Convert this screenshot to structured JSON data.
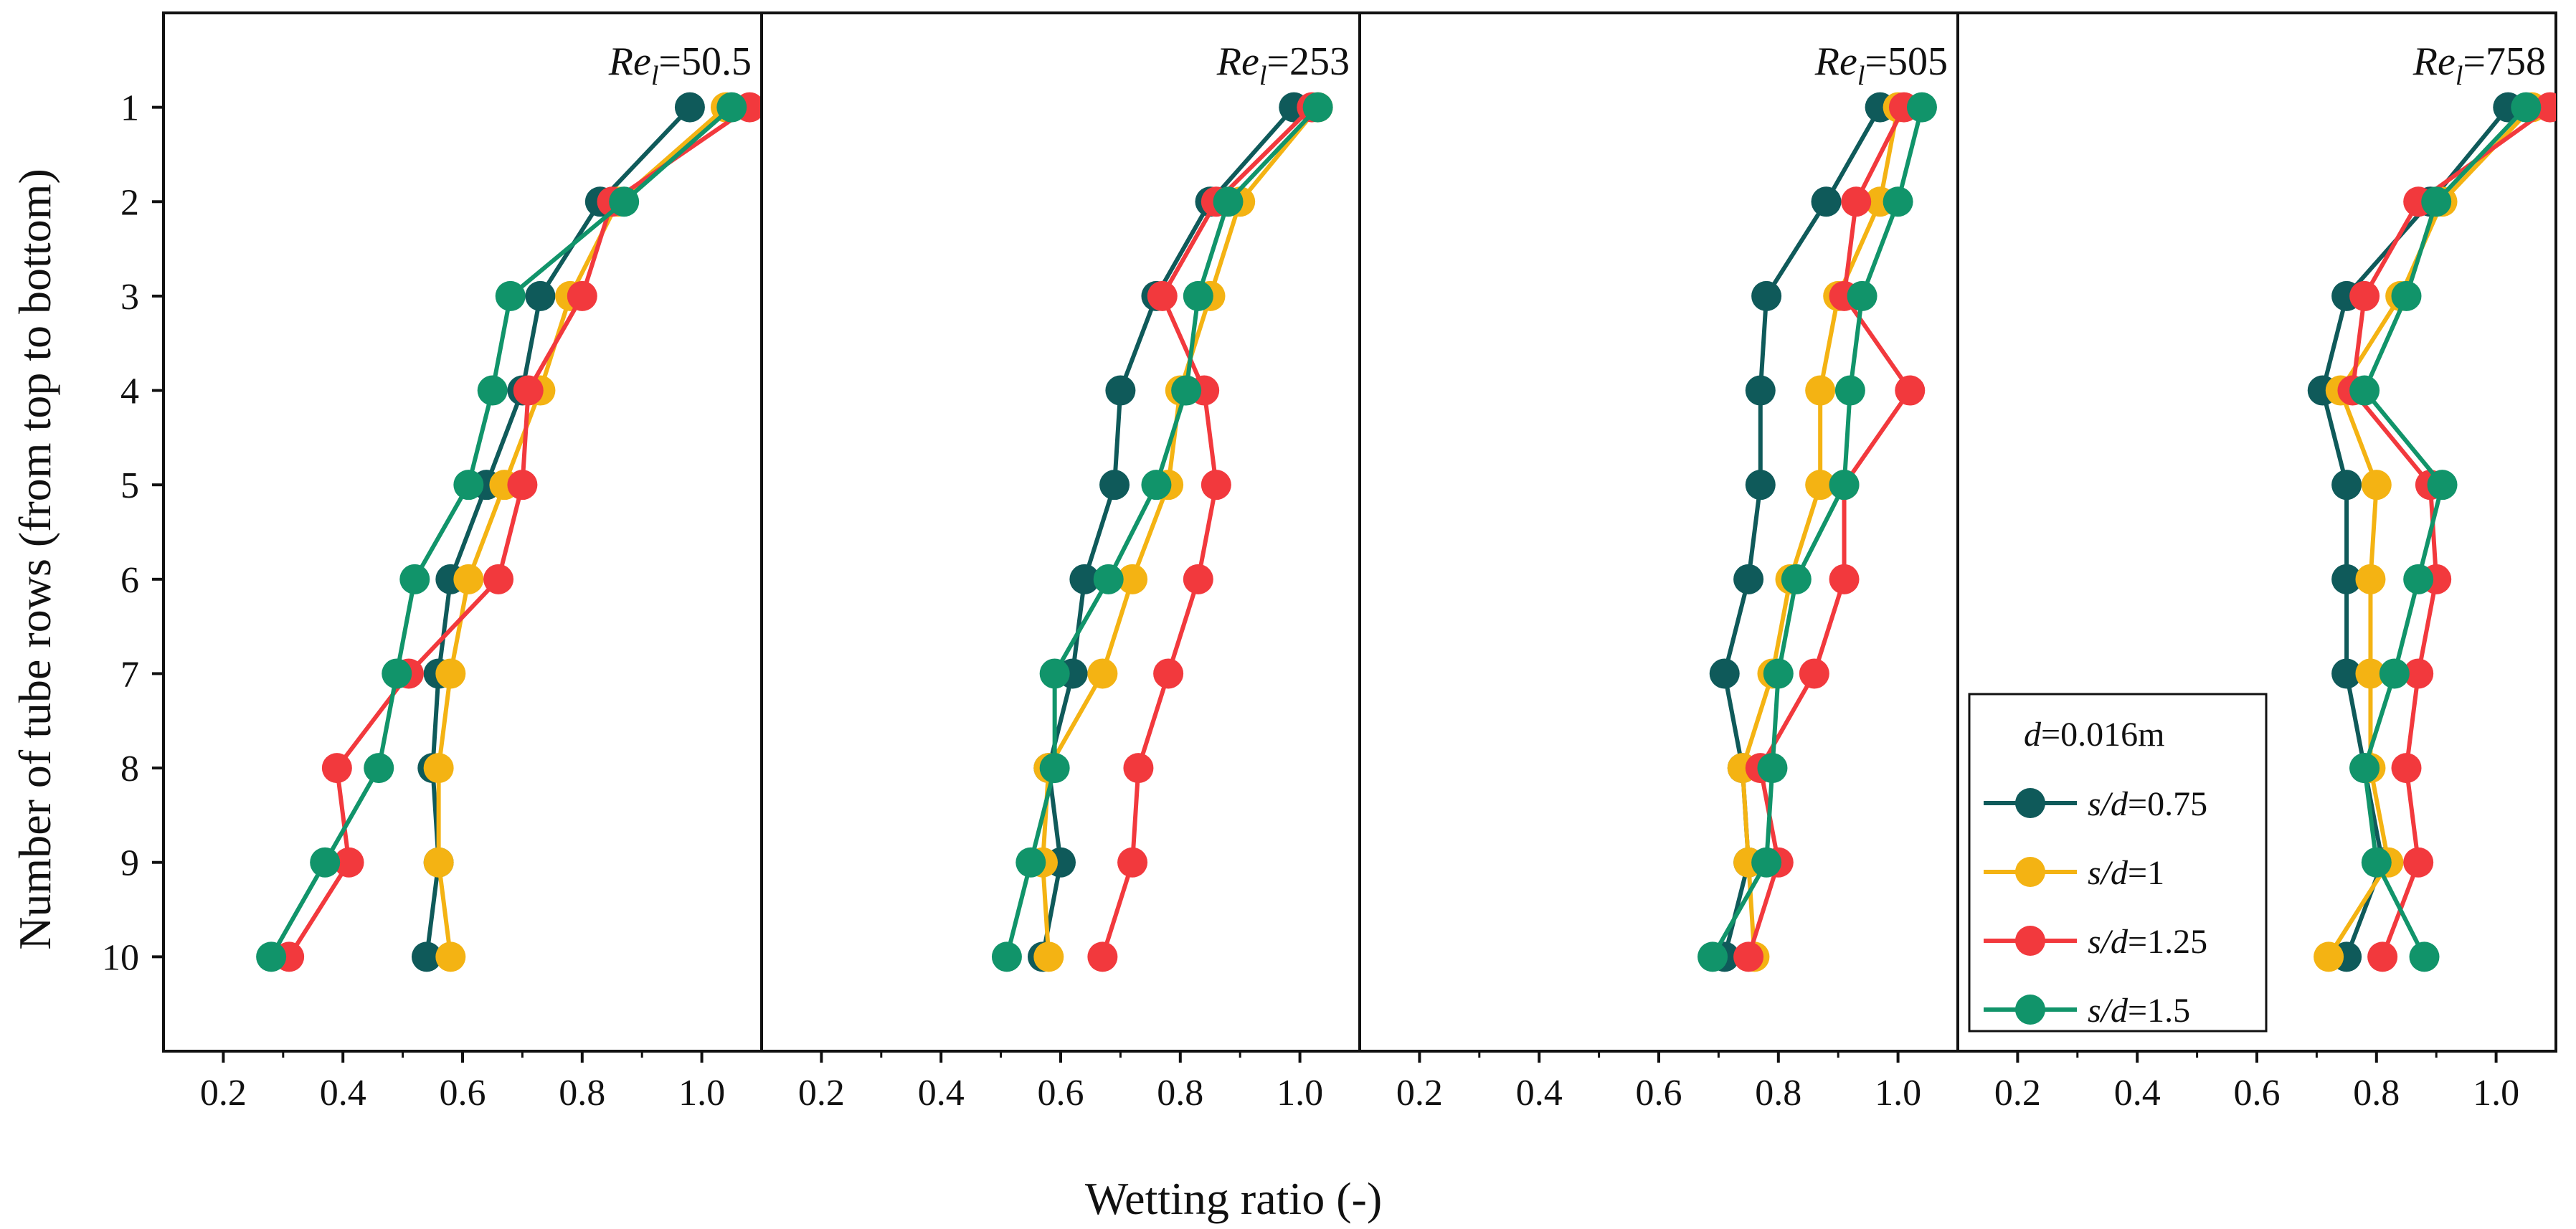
{
  "chart_data": {
    "type": "line",
    "xlabel": "Wetting ratio (-)",
    "ylabel": "Number of tube rows (from top to bottom)",
    "xlim": [
      0.1,
      1.1
    ],
    "ylim": [
      11,
      0
    ],
    "x_ticks": [
      "0.2",
      "0.4",
      "0.6",
      "0.8",
      "1.0"
    ],
    "y_ticks": [
      "1",
      "2",
      "3",
      "4",
      "5",
      "6",
      "7",
      "8",
      "9",
      "10"
    ],
    "rows": [
      1,
      2,
      3,
      4,
      5,
      6,
      7,
      8,
      9,
      10
    ],
    "legend": {
      "title_var": "d",
      "title_value": "=0.016m",
      "entries": [
        {
          "var": "s/d",
          "value": "=0.75"
        },
        {
          "var": "s/d",
          "value": "=1"
        },
        {
          "var": "s/d",
          "value": "=1.25"
        },
        {
          "var": "s/d",
          "value": "=1.5"
        }
      ]
    },
    "series_colors": [
      "#0f5a5a",
      "#f4b313",
      "#f2393d",
      "#11946a"
    ],
    "panels": [
      {
        "label_var": "Re",
        "label_sub": "l",
        "label_value": "=50.5",
        "series": [
          {
            "name": "s/d=0.75",
            "values": [
              0.98,
              0.83,
              0.73,
              0.7,
              0.64,
              0.58,
              0.56,
              0.55,
              0.56,
              0.54
            ]
          },
          {
            "name": "s/d=1",
            "values": [
              1.04,
              0.86,
              0.78,
              0.73,
              0.67,
              0.61,
              0.58,
              0.56,
              0.56,
              0.58
            ]
          },
          {
            "name": "s/d=1.25",
            "values": [
              1.08,
              0.85,
              0.8,
              0.71,
              0.7,
              0.66,
              0.51,
              0.39,
              0.41,
              0.31
            ]
          },
          {
            "name": "s/d=1.5",
            "values": [
              1.05,
              0.87,
              0.68,
              0.65,
              0.61,
              0.52,
              0.49,
              0.46,
              0.37,
              0.28
            ]
          }
        ]
      },
      {
        "label_var": "Re",
        "label_sub": "l",
        "label_value": "=253",
        "series": [
          {
            "name": "s/d=0.75",
            "values": [
              0.99,
              0.85,
              0.76,
              0.7,
              0.69,
              0.64,
              0.62,
              0.58,
              0.6,
              0.57
            ]
          },
          {
            "name": "s/d=1",
            "values": [
              1.03,
              0.9,
              0.85,
              0.8,
              0.78,
              0.72,
              0.67,
              0.58,
              0.57,
              0.58
            ]
          },
          {
            "name": "s/d=1.25",
            "values": [
              1.02,
              0.86,
              0.77,
              0.84,
              0.86,
              0.83,
              0.78,
              0.73,
              0.72,
              0.67
            ]
          },
          {
            "name": "s/d=1.5",
            "values": [
              1.03,
              0.88,
              0.83,
              0.81,
              0.76,
              0.68,
              0.59,
              0.59,
              0.55,
              0.51
            ]
          }
        ]
      },
      {
        "label_var": "Re",
        "label_sub": "l",
        "label_value": "=505",
        "series": [
          {
            "name": "s/d=0.75",
            "values": [
              0.97,
              0.88,
              0.78,
              0.77,
              0.77,
              0.75,
              0.71,
              0.74,
              0.75,
              0.71
            ]
          },
          {
            "name": "s/d=1",
            "values": [
              1.0,
              0.97,
              0.9,
              0.87,
              0.87,
              0.82,
              0.79,
              0.74,
              0.75,
              0.76
            ]
          },
          {
            "name": "s/d=1.25",
            "values": [
              1.01,
              0.93,
              0.91,
              1.02,
              0.91,
              0.91,
              0.86,
              0.77,
              0.8,
              0.75
            ]
          },
          {
            "name": "s/d=1.5",
            "values": [
              1.04,
              1.0,
              0.94,
              0.92,
              0.91,
              0.83,
              0.8,
              0.79,
              0.78,
              0.69
            ]
          }
        ]
      },
      {
        "label_var": "Re",
        "label_sub": "l",
        "label_value": "=758",
        "series": [
          {
            "name": "s/d=0.75",
            "values": [
              1.02,
              0.89,
              0.75,
              0.71,
              0.75,
              0.75,
              0.75,
              0.78,
              0.81,
              0.75
            ]
          },
          {
            "name": "s/d=1",
            "values": [
              1.06,
              0.91,
              0.84,
              0.74,
              0.8,
              0.79,
              0.79,
              0.79,
              0.82,
              0.72
            ]
          },
          {
            "name": "s/d=1.25",
            "values": [
              1.09,
              0.87,
              0.78,
              0.76,
              0.89,
              0.9,
              0.87,
              0.85,
              0.87,
              0.81
            ]
          },
          {
            "name": "s/d=1.5",
            "values": [
              1.05,
              0.9,
              0.85,
              0.78,
              0.91,
              0.87,
              0.83,
              0.78,
              0.8,
              0.88
            ]
          }
        ]
      }
    ]
  }
}
